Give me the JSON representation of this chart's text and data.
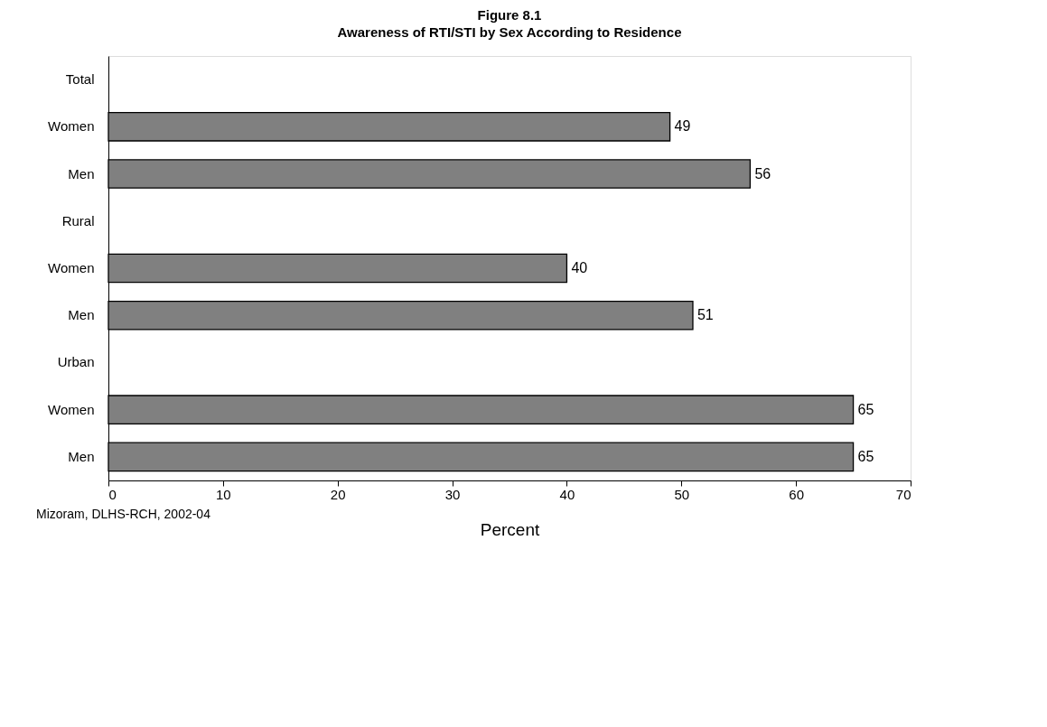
{
  "chart_data": {
    "type": "bar",
    "orientation": "horizontal",
    "title": "Figure 8.1",
    "subtitle": "Awareness of RTI/STI by Sex According to Residence",
    "xlabel": "Percent",
    "categories": [
      "Total",
      "Women",
      "Men",
      "Rural",
      "Women",
      "Men",
      "Urban",
      "Women",
      "Men"
    ],
    "values": [
      null,
      49,
      56,
      null,
      40,
      51,
      null,
      65,
      65
    ],
    "color": "#808080",
    "xlim": [
      0,
      70
    ],
    "xticks": [
      0,
      10,
      20,
      30,
      40,
      50,
      60,
      70
    ],
    "grid": false,
    "data_labels": true,
    "annotations": [
      "Mizoram, DLHS-RCH, 2002-04"
    ]
  }
}
